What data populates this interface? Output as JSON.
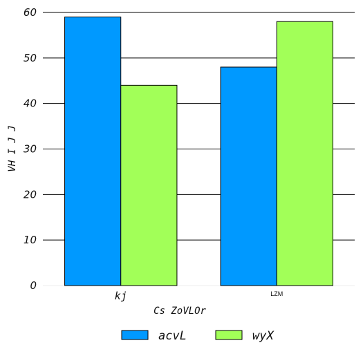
{
  "chart_data": {
    "type": "bar",
    "categories": [
      "kj",
      "LZM"
    ],
    "series": [
      {
        "name": "acvL",
        "values": [
          59,
          48
        ],
        "color": "#0099ff"
      },
      {
        "name": "wyX",
        "values": [
          44,
          58
        ],
        "color": "#a2ff58"
      }
    ],
    "xlabel": "Cs ZoVLOr",
    "ylabel": "VH I J J",
    "ylim": [
      0,
      60
    ],
    "yticks": [
      0,
      10,
      20,
      30,
      40,
      50,
      60
    ],
    "grid": "horizontal",
    "legend_position": "bottom-center"
  }
}
